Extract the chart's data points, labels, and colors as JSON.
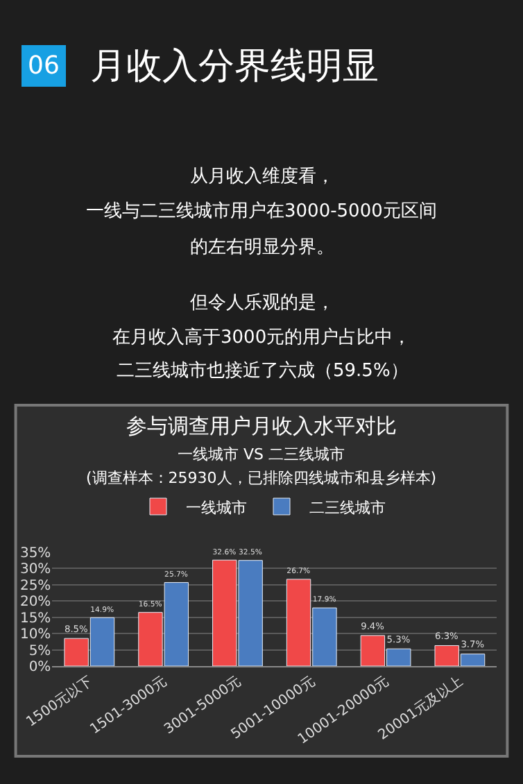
{
  "chart_data": {
    "type": "bar",
    "title": "参与调查用户月收入水平对比",
    "subtitle": "一线城市 VS 二三线城市",
    "annotations": [
      "06",
      "月收入分界线明显",
      "从月收入维度看，",
      "一线与二三线城市用户在3000-5000元区间",
      "的左右明显分界。",
      "但令人乐观的是，",
      "在月收入高于3000元的用户占比中，",
      "二三线城市也接近了六成（59.5%）",
      "(调查样本：25930人，已排除四线城市和县乡样本)"
    ],
    "categories": [
      "1500元以下",
      "1501-3000元",
      "3001-5000元",
      "5001-10000元",
      "10001-20000元",
      "20001元及以上"
    ],
    "series": [
      {
        "name": "一线城市",
        "color": "#f04848",
        "values": [
          8.5,
          16.5,
          32.6,
          26.7,
          9.4,
          6.3
        ],
        "value_labels": [
          "8.5%",
          "16.5%",
          "32.6%",
          "26.7%",
          "9.4%",
          "6.3%"
        ]
      },
      {
        "name": "二三线城市",
        "color": "#4a7cc0",
        "values": [
          14.9,
          25.7,
          32.5,
          17.9,
          5.3,
          3.7
        ],
        "value_labels": [
          "14.9%",
          "25.7%",
          "32.5%",
          "17.9%",
          "5.3%",
          "3.7%"
        ]
      }
    ],
    "ylim": [
      0,
      35
    ],
    "yticks": [
      {
        "value": 0,
        "label": "0%"
      },
      {
        "value": 5,
        "label": "5%"
      },
      {
        "value": 10,
        "label": "10%"
      },
      {
        "value": 15,
        "label": "15%"
      },
      {
        "value": 20,
        "label": "20%"
      },
      {
        "value": 25,
        "label": "25%"
      },
      {
        "value": 30,
        "label": "30%"
      },
      {
        "value": 35,
        "label": "35%"
      }
    ],
    "grid": "y",
    "legend": "top"
  }
}
